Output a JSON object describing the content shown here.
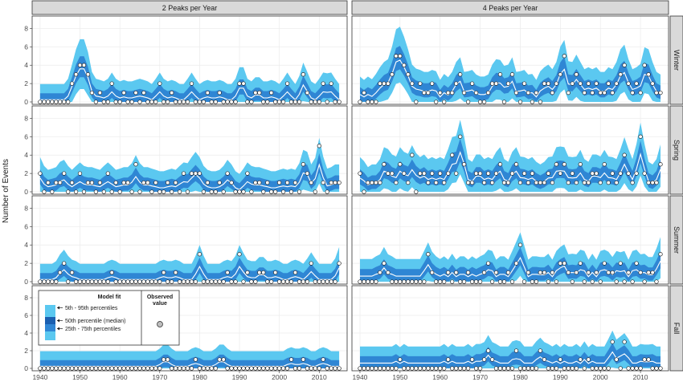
{
  "chart_data": {
    "type": "area",
    "ylabel": "Number of Events",
    "ylim": [
      0,
      9
    ],
    "y_ticks": [
      0,
      2,
      4,
      6,
      8
    ],
    "xlim": [
      1938,
      2017
    ],
    "x_ticks": [
      1940,
      1950,
      1960,
      1970,
      1980,
      1990,
      2000,
      2010
    ],
    "columns": [
      "2 Peaks per Year",
      "4 Peaks per Year"
    ],
    "rows": [
      "Winter",
      "Spring",
      "Summer",
      "Fall"
    ],
    "grid": true,
    "legend": {
      "title": "Model fit",
      "observed_title": "Observed value",
      "items": [
        {
          "label": "5th - 95th percentiles",
          "color": "#5bc8f0"
        },
        {
          "label": "50th percentile (median)",
          "color": "#1a5fb0"
        },
        {
          "label": "25th - 75th percentiles",
          "color": "#2f86d4"
        }
      ],
      "placement": "bottom-left panel"
    },
    "colors": {
      "p5_95": "#5bc8f0",
      "p25_75": "#2f86d4",
      "median": "#ffffff",
      "observed_fill": "#ffffff",
      "strip": "#d9d9d9"
    },
    "years": [
      1940,
      2015
    ],
    "panels": [
      {
        "column": "2 Peaks per Year",
        "row": "Winter",
        "events": [
          [
            1948,
            2
          ],
          [
            1949,
            3
          ],
          [
            1950,
            4
          ],
          [
            1951,
            4
          ],
          [
            1952,
            3
          ],
          [
            1953,
            1
          ],
          [
            1955,
            1
          ],
          [
            1958,
            2
          ],
          [
            1961,
            1
          ],
          [
            1964,
            1
          ],
          [
            1966,
            1
          ],
          [
            1970,
            2
          ],
          [
            1973,
            1
          ],
          [
            1978,
            2
          ],
          [
            1982,
            1
          ],
          [
            1985,
            1
          ],
          [
            1990,
            2
          ],
          [
            1991,
            2
          ],
          [
            1994,
            1
          ],
          [
            1995,
            1
          ],
          [
            1998,
            1
          ],
          [
            2002,
            2
          ],
          [
            2006,
            3
          ],
          [
            2007,
            1
          ],
          [
            2011,
            2
          ],
          [
            2013,
            2
          ]
        ]
      },
      {
        "column": "4 Peaks per Year",
        "row": "Winter",
        "events": [
          [
            1941,
            1
          ],
          [
            1945,
            2
          ],
          [
            1946,
            2
          ],
          [
            1947,
            2
          ],
          [
            1948,
            3
          ],
          [
            1949,
            5
          ],
          [
            1950,
            5
          ],
          [
            1951,
            4
          ],
          [
            1952,
            3
          ],
          [
            1953,
            2
          ],
          [
            1955,
            2
          ],
          [
            1956,
            1
          ],
          [
            1957,
            1
          ],
          [
            1958,
            2
          ],
          [
            1960,
            1
          ],
          [
            1962,
            1
          ],
          [
            1963,
            1
          ],
          [
            1964,
            2
          ],
          [
            1965,
            3
          ],
          [
            1966,
            1
          ],
          [
            1968,
            2
          ],
          [
            1969,
            1
          ],
          [
            1972,
            1
          ],
          [
            1973,
            2
          ],
          [
            1974,
            2
          ],
          [
            1975,
            3
          ],
          [
            1977,
            2
          ],
          [
            1978,
            3
          ],
          [
            1979,
            1
          ],
          [
            1981,
            2
          ],
          [
            1982,
            1
          ],
          [
            1984,
            1
          ],
          [
            1986,
            2
          ],
          [
            1987,
            2
          ],
          [
            1988,
            1
          ],
          [
            1989,
            2
          ],
          [
            1990,
            3
          ],
          [
            1991,
            5
          ],
          [
            1992,
            1
          ],
          [
            1993,
            2
          ],
          [
            1994,
            3
          ],
          [
            1995,
            2
          ],
          [
            1996,
            1
          ],
          [
            1997,
            2
          ],
          [
            1998,
            1
          ],
          [
            1999,
            2
          ],
          [
            2000,
            1
          ],
          [
            2001,
            1
          ],
          [
            2002,
            2
          ],
          [
            2003,
            1
          ],
          [
            2004,
            2
          ],
          [
            2005,
            3
          ],
          [
            2006,
            4
          ],
          [
            2007,
            2
          ],
          [
            2008,
            1
          ],
          [
            2009,
            2
          ],
          [
            2010,
            1
          ],
          [
            2011,
            4
          ],
          [
            2012,
            3
          ],
          [
            2013,
            2
          ],
          [
            2014,
            1
          ],
          [
            2015,
            1
          ]
        ]
      },
      {
        "column": "2 Peaks per Year",
        "row": "Spring",
        "events": [
          [
            1940,
            2
          ],
          [
            1942,
            1
          ],
          [
            1944,
            1
          ],
          [
            1945,
            1
          ],
          [
            1946,
            2
          ],
          [
            1948,
            1
          ],
          [
            1950,
            2
          ],
          [
            1952,
            1
          ],
          [
            1953,
            1
          ],
          [
            1955,
            1
          ],
          [
            1957,
            2
          ],
          [
            1959,
            1
          ],
          [
            1961,
            1
          ],
          [
            1962,
            1
          ],
          [
            1964,
            3
          ],
          [
            1966,
            1
          ],
          [
            1967,
            1
          ],
          [
            1969,
            1
          ],
          [
            1972,
            1
          ],
          [
            1974,
            1
          ],
          [
            1976,
            2
          ],
          [
            1978,
            2
          ],
          [
            1979,
            2
          ],
          [
            1980,
            2
          ],
          [
            1982,
            1
          ],
          [
            1985,
            1
          ],
          [
            1987,
            2
          ],
          [
            1988,
            1
          ],
          [
            1992,
            2
          ],
          [
            1994,
            1
          ],
          [
            1995,
            1
          ],
          [
            1997,
            1
          ],
          [
            2000,
            1
          ],
          [
            2002,
            1
          ],
          [
            2004,
            1
          ],
          [
            2006,
            3
          ],
          [
            2007,
            2
          ],
          [
            2008,
            1
          ],
          [
            2010,
            5
          ],
          [
            2011,
            1
          ],
          [
            2013,
            1
          ],
          [
            2014,
            1
          ],
          [
            2015,
            1
          ]
        ]
      },
      {
        "column": "4 Peaks per Year",
        "row": "Spring",
        "events": [
          [
            1940,
            2
          ],
          [
            1942,
            1
          ],
          [
            1943,
            1
          ],
          [
            1944,
            1
          ],
          [
            1945,
            1
          ],
          [
            1946,
            3
          ],
          [
            1947,
            2
          ],
          [
            1948,
            2
          ],
          [
            1949,
            1
          ],
          [
            1950,
            3
          ],
          [
            1951,
            2
          ],
          [
            1952,
            1
          ],
          [
            1953,
            4
          ],
          [
            1955,
            2
          ],
          [
            1956,
            2
          ],
          [
            1957,
            1
          ],
          [
            1958,
            2
          ],
          [
            1959,
            1
          ],
          [
            1960,
            2
          ],
          [
            1961,
            1
          ],
          [
            1962,
            2
          ],
          [
            1963,
            4
          ],
          [
            1964,
            2
          ],
          [
            1965,
            6
          ],
          [
            1966,
            3
          ],
          [
            1967,
            1
          ],
          [
            1968,
            1
          ],
          [
            1969,
            2
          ],
          [
            1970,
            2
          ],
          [
            1971,
            1
          ],
          [
            1972,
            2
          ],
          [
            1973,
            1
          ],
          [
            1974,
            2
          ],
          [
            1975,
            3
          ],
          [
            1976,
            1
          ],
          [
            1977,
            1
          ],
          [
            1978,
            2
          ],
          [
            1979,
            3
          ],
          [
            1980,
            1
          ],
          [
            1981,
            2
          ],
          [
            1982,
            1
          ],
          [
            1983,
            2
          ],
          [
            1984,
            1
          ],
          [
            1985,
            1
          ],
          [
            1986,
            1
          ],
          [
            1987,
            2
          ],
          [
            1988,
            1
          ],
          [
            1989,
            3
          ],
          [
            1990,
            2
          ],
          [
            1991,
            3
          ],
          [
            1992,
            1
          ],
          [
            1993,
            2
          ],
          [
            1994,
            1
          ],
          [
            1995,
            3
          ],
          [
            1996,
            1
          ],
          [
            1997,
            1
          ],
          [
            1998,
            2
          ],
          [
            1999,
            2
          ],
          [
            2000,
            1
          ],
          [
            2001,
            3
          ],
          [
            2002,
            1
          ],
          [
            2003,
            2
          ],
          [
            2004,
            1
          ],
          [
            2005,
            2
          ],
          [
            2006,
            4
          ],
          [
            2007,
            2
          ],
          [
            2008,
            1
          ],
          [
            2009,
            2
          ],
          [
            2010,
            6
          ],
          [
            2011,
            2
          ],
          [
            2012,
            1
          ],
          [
            2013,
            1
          ],
          [
            2014,
            1
          ],
          [
            2015,
            3
          ]
        ]
      },
      {
        "column": "2 Peaks per Year",
        "row": "Summer",
        "events": [
          [
            1945,
            1
          ],
          [
            1946,
            2
          ],
          [
            1948,
            1
          ],
          [
            1958,
            1
          ],
          [
            1971,
            1
          ],
          [
            1974,
            1
          ],
          [
            1980,
            3
          ],
          [
            1987,
            1
          ],
          [
            1990,
            3
          ],
          [
            1992,
            1
          ],
          [
            1995,
            1
          ],
          [
            1996,
            1
          ],
          [
            1999,
            1
          ],
          [
            2004,
            1
          ],
          [
            2008,
            2
          ],
          [
            2015,
            2
          ]
        ]
      },
      {
        "column": "4 Peaks per Year",
        "row": "Summer",
        "events": [
          [
            1945,
            1
          ],
          [
            1946,
            2
          ],
          [
            1947,
            1
          ],
          [
            1957,
            3
          ],
          [
            1958,
            1
          ],
          [
            1962,
            1
          ],
          [
            1964,
            1
          ],
          [
            1967,
            1
          ],
          [
            1971,
            1
          ],
          [
            1972,
            2
          ],
          [
            1974,
            1
          ],
          [
            1977,
            1
          ],
          [
            1979,
            2
          ],
          [
            1980,
            4
          ],
          [
            1982,
            1
          ],
          [
            1985,
            1
          ],
          [
            1986,
            1
          ],
          [
            1988,
            1
          ],
          [
            1990,
            2
          ],
          [
            1991,
            2
          ],
          [
            1992,
            1
          ],
          [
            1994,
            1
          ],
          [
            1995,
            2
          ],
          [
            1997,
            1
          ],
          [
            1999,
            1
          ],
          [
            2001,
            2
          ],
          [
            2002,
            1
          ],
          [
            2003,
            1
          ],
          [
            2005,
            2
          ],
          [
            2007,
            1
          ],
          [
            2009,
            2
          ],
          [
            2010,
            1
          ],
          [
            2012,
            1
          ],
          [
            2013,
            1
          ],
          [
            2015,
            3
          ]
        ]
      },
      {
        "column": "2 Peaks per Year",
        "row": "Fall",
        "events": [
          [
            1971,
            1
          ],
          [
            1972,
            1
          ],
          [
            1979,
            1
          ],
          [
            1985,
            1
          ],
          [
            1986,
            1
          ],
          [
            2003,
            1
          ],
          [
            2006,
            1
          ],
          [
            2011,
            1
          ]
        ]
      },
      {
        "column": "4 Peaks per Year",
        "row": "Fall",
        "events": [
          [
            1950,
            1
          ],
          [
            1962,
            1
          ],
          [
            1968,
            1
          ],
          [
            1971,
            1
          ],
          [
            1972,
            2
          ],
          [
            1973,
            1
          ],
          [
            1979,
            2
          ],
          [
            1985,
            2
          ],
          [
            1986,
            1
          ],
          [
            1990,
            1
          ],
          [
            1995,
            1
          ],
          [
            1997,
            1
          ],
          [
            2003,
            3
          ],
          [
            2004,
            1
          ],
          [
            2006,
            3
          ],
          [
            2011,
            1
          ],
          [
            2012,
            1
          ]
        ]
      }
    ]
  }
}
